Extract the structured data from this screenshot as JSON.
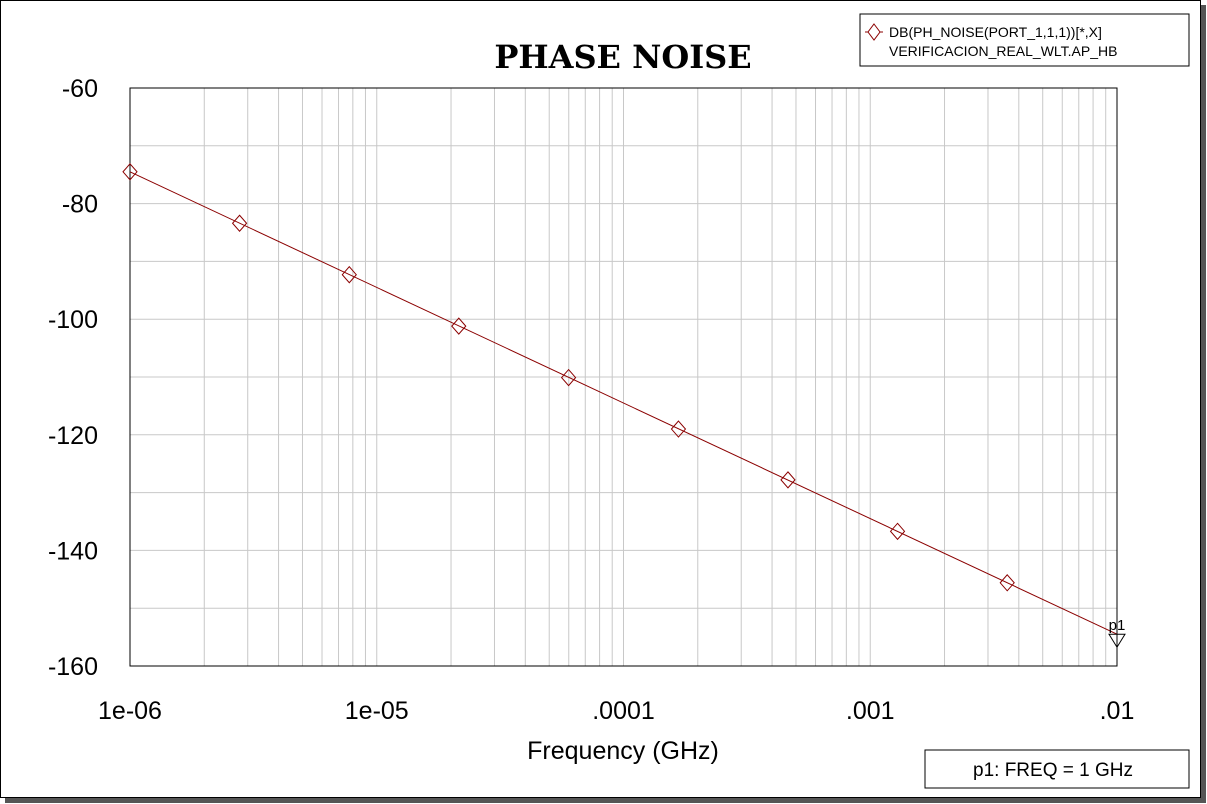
{
  "chart_data": {
    "type": "line",
    "title": "PHASE NOISE",
    "xlabel": "Frequency (GHz)",
    "ylabel": "",
    "x_scale": "log",
    "xlim": [
      1e-06,
      0.01
    ],
    "ylim": [
      -160,
      -60
    ],
    "grid": true,
    "x_ticks": [
      {
        "value": 1e-06,
        "label": "1e-06"
      },
      {
        "value": 1e-05,
        "label": "1e-05"
      },
      {
        "value": 0.0001,
        "label": ".0001"
      },
      {
        "value": 0.001,
        "label": ".001"
      },
      {
        "value": 0.01,
        "label": ".01"
      }
    ],
    "y_ticks": [
      {
        "value": -60,
        "label": "-60"
      },
      {
        "value": -80,
        "label": "-80"
      },
      {
        "value": -100,
        "label": "-100"
      },
      {
        "value": -120,
        "label": "-120"
      },
      {
        "value": -140,
        "label": "-140"
      },
      {
        "value": -160,
        "label": "-160"
      }
    ],
    "series": [
      {
        "name": "DB(PH_NOISE(PORT_1,1,1))[*,X]",
        "legend_subtitle": "VERIFICACION_REAL_WLT.AP_HB",
        "color": "#8b0000",
        "marker": "diamond",
        "x": [
          1e-06,
          0.01
        ],
        "y": [
          -74.5,
          -154.5
        ],
        "marker_x": [
          1e-06,
          2.78e-06,
          7.74e-06,
          2.15e-05,
          5.99e-05,
          0.000167,
          0.000464,
          0.00129,
          0.00359
        ],
        "marker_y": [
          -74.5,
          -83.4,
          -92.3,
          -101.2,
          -110.1,
          -119.0,
          -127.8,
          -136.7,
          -145.6
        ]
      }
    ],
    "legend_position": "top-right",
    "markers": [
      {
        "name": "p1",
        "x": 0.01,
        "y": -154.5,
        "readout": "p1: FREQ = 1 GHz"
      }
    ]
  }
}
